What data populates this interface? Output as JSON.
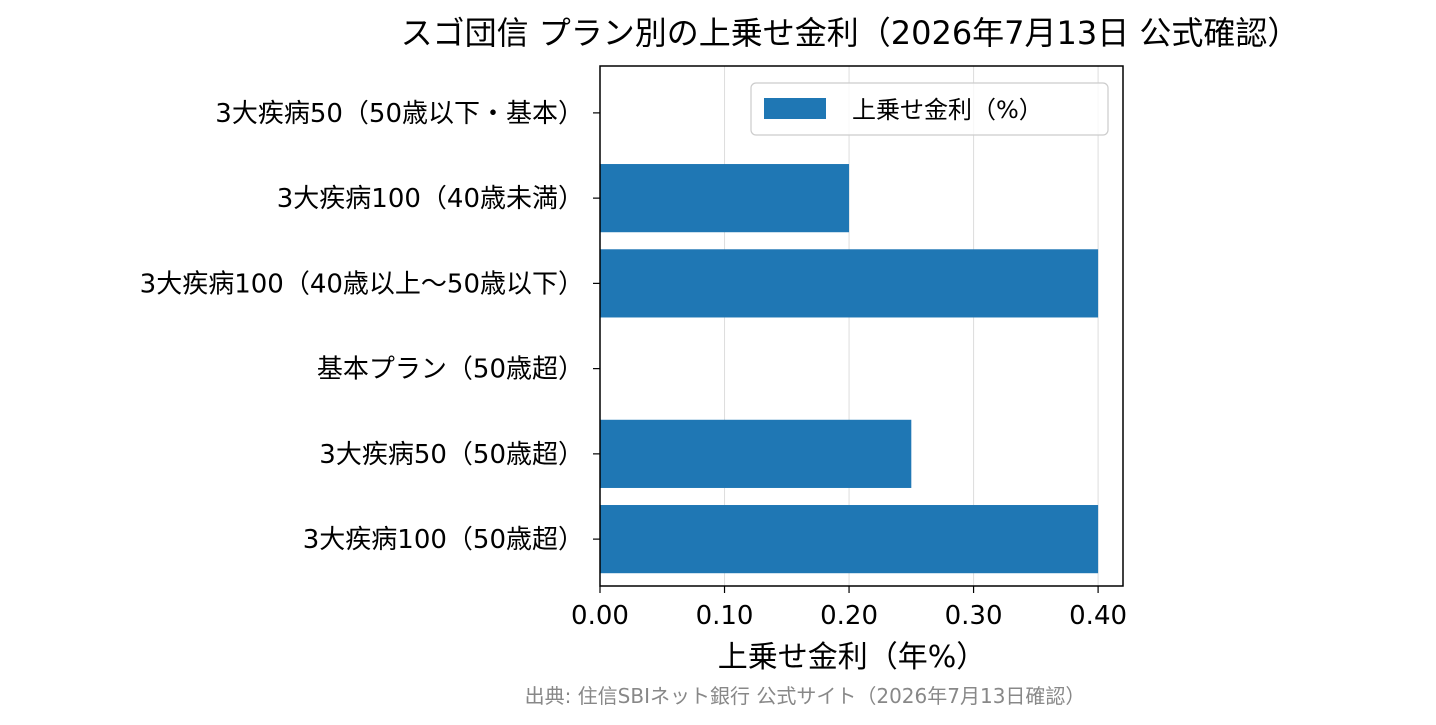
{
  "chart_data": {
    "type": "bar",
    "orientation": "horizontal",
    "title": "スゴ団信 プラン別の上乗せ金利（2026年7月13日 公式確認）",
    "categories": [
      "3大疾病50（50歳以下・基本）",
      "3大疾病100（40歳未満）",
      "3大疾病100（40歳以上〜50歳以下）",
      "基本プラン（50歳超）",
      "3大疾病50（50歳超）",
      "3大疾病100（50歳超）"
    ],
    "series": [
      {
        "name": "上乗せ金利（%）",
        "values": [
          0.0,
          0.2,
          0.4,
          0.0,
          0.25,
          0.4
        ],
        "color": "#1f77b4"
      }
    ],
    "xlabel": "上乗せ金利（年%）",
    "ylabel": "",
    "xlim": [
      0,
      0.42
    ],
    "xticks": [
      0.0,
      0.1,
      0.2,
      0.3,
      0.4
    ],
    "xtick_labels": [
      "0.00",
      "0.10",
      "0.20",
      "0.30",
      "0.40"
    ],
    "grid": "x",
    "legend_position": "upper right",
    "source_note": "出典: 住信SBIネット銀行 公式サイト（2026年7月13日確認）"
  }
}
